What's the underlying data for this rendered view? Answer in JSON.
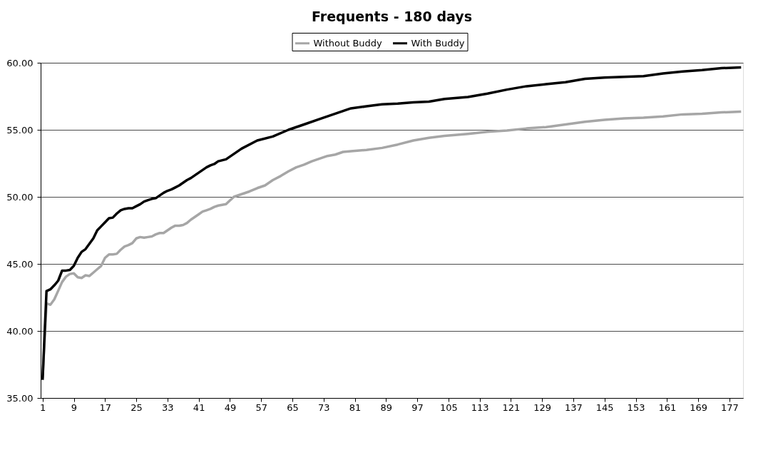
{
  "chart_data": {
    "type": "line",
    "title": "Frequents - 180 days",
    "xlim": [
      0.5,
      180.5
    ],
    "xticks": [
      1,
      9,
      17,
      25,
      33,
      41,
      49,
      57,
      65,
      73,
      81,
      89,
      97,
      105,
      113,
      121,
      129,
      137,
      145,
      153,
      161,
      169,
      177
    ],
    "ylim": [
      35,
      60
    ],
    "yticks": [
      {
        "value": 35,
        "label": "35.00"
      },
      {
        "value": 40,
        "label": "40.00"
      },
      {
        "value": 45,
        "label": "45.00"
      },
      {
        "value": 50,
        "label": "50.00"
      },
      {
        "value": 55,
        "label": "55.00"
      },
      {
        "value": 60,
        "label": "60.00"
      }
    ],
    "grid": "y",
    "legend": "top",
    "marker": "none",
    "line_style": "solid",
    "series": [
      {
        "name": "Without Buddy",
        "color": "#a6a6a6",
        "x": [
          1,
          2,
          3,
          4,
          5,
          6,
          7,
          8,
          9,
          10,
          11,
          12,
          13,
          14,
          15,
          16,
          17,
          18,
          19,
          20,
          21,
          22,
          23,
          24,
          25,
          26,
          27,
          28,
          29,
          30,
          31,
          32,
          33,
          34,
          35,
          36,
          37,
          38,
          39,
          40,
          41,
          42,
          43,
          44,
          45,
          46,
          48,
          50,
          52,
          54,
          56,
          58,
          60,
          62,
          64,
          66,
          68,
          70,
          72,
          74,
          76,
          78,
          80,
          84,
          88,
          92,
          96,
          100,
          104,
          110,
          115,
          120,
          125,
          130,
          135,
          140,
          145,
          150,
          155,
          160,
          165,
          170,
          175,
          180
        ],
        "values": [
          36.5,
          42.05,
          41.95,
          42.35,
          43.0,
          43.65,
          44.05,
          44.25,
          44.3,
          44.0,
          43.95,
          44.15,
          44.1,
          44.35,
          44.6,
          44.85,
          45.45,
          45.7,
          45.7,
          45.75,
          46.05,
          46.3,
          46.4,
          46.55,
          46.9,
          47.0,
          46.95,
          47.0,
          47.05,
          47.2,
          47.3,
          47.3,
          47.5,
          47.7,
          47.85,
          47.85,
          47.9,
          48.05,
          48.3,
          48.5,
          48.7,
          48.9,
          49.0,
          49.1,
          49.25,
          49.35,
          49.45,
          50.0,
          50.2,
          50.4,
          50.65,
          50.85,
          51.25,
          51.55,
          51.9,
          52.2,
          52.4,
          52.65,
          52.85,
          53.05,
          53.15,
          53.35,
          53.4,
          53.5,
          53.65,
          53.9,
          54.2,
          54.4,
          54.55,
          54.7,
          54.85,
          54.95,
          55.1,
          55.2,
          55.4,
          55.6,
          55.75,
          55.85,
          55.9,
          56.0,
          56.15,
          56.2,
          56.3,
          56.35
        ]
      },
      {
        "name": "With Buddy",
        "color": "#000000",
        "x": [
          1,
          2,
          3,
          4,
          5,
          6,
          7,
          8,
          9,
          10,
          11,
          12,
          13,
          14,
          15,
          16,
          17,
          18,
          19,
          20,
          21,
          22,
          23,
          24,
          25,
          26,
          27,
          28,
          29,
          30,
          31,
          32,
          33,
          34,
          35,
          36,
          37,
          38,
          39,
          40,
          41,
          42,
          43,
          44,
          45,
          46,
          48,
          52,
          56,
          60,
          64,
          68,
          72,
          76,
          80,
          84,
          88,
          92,
          96,
          100,
          104,
          110,
          115,
          120,
          125,
          130,
          135,
          140,
          145,
          150,
          155,
          160,
          165,
          170,
          175,
          180
        ],
        "values": [
          36.35,
          42.97,
          43.1,
          43.4,
          43.75,
          44.5,
          44.5,
          44.55,
          44.85,
          45.45,
          45.9,
          46.1,
          46.5,
          46.9,
          47.5,
          47.8,
          48.1,
          48.4,
          48.45,
          48.75,
          49.0,
          49.1,
          49.15,
          49.15,
          49.3,
          49.45,
          49.65,
          49.75,
          49.85,
          49.9,
          50.1,
          50.3,
          50.45,
          50.55,
          50.7,
          50.85,
          51.05,
          51.25,
          51.4,
          51.6,
          51.8,
          52.0,
          52.2,
          52.35,
          52.45,
          52.65,
          52.8,
          53.6,
          54.2,
          54.5,
          55.0,
          55.4,
          55.8,
          56.2,
          56.6,
          56.75,
          56.9,
          56.95,
          57.05,
          57.1,
          57.3,
          57.45,
          57.7,
          58.0,
          58.25,
          58.4,
          58.55,
          58.8,
          58.9,
          58.95,
          59.0,
          59.2,
          59.35,
          59.45,
          59.6,
          59.65
        ]
      }
    ]
  }
}
